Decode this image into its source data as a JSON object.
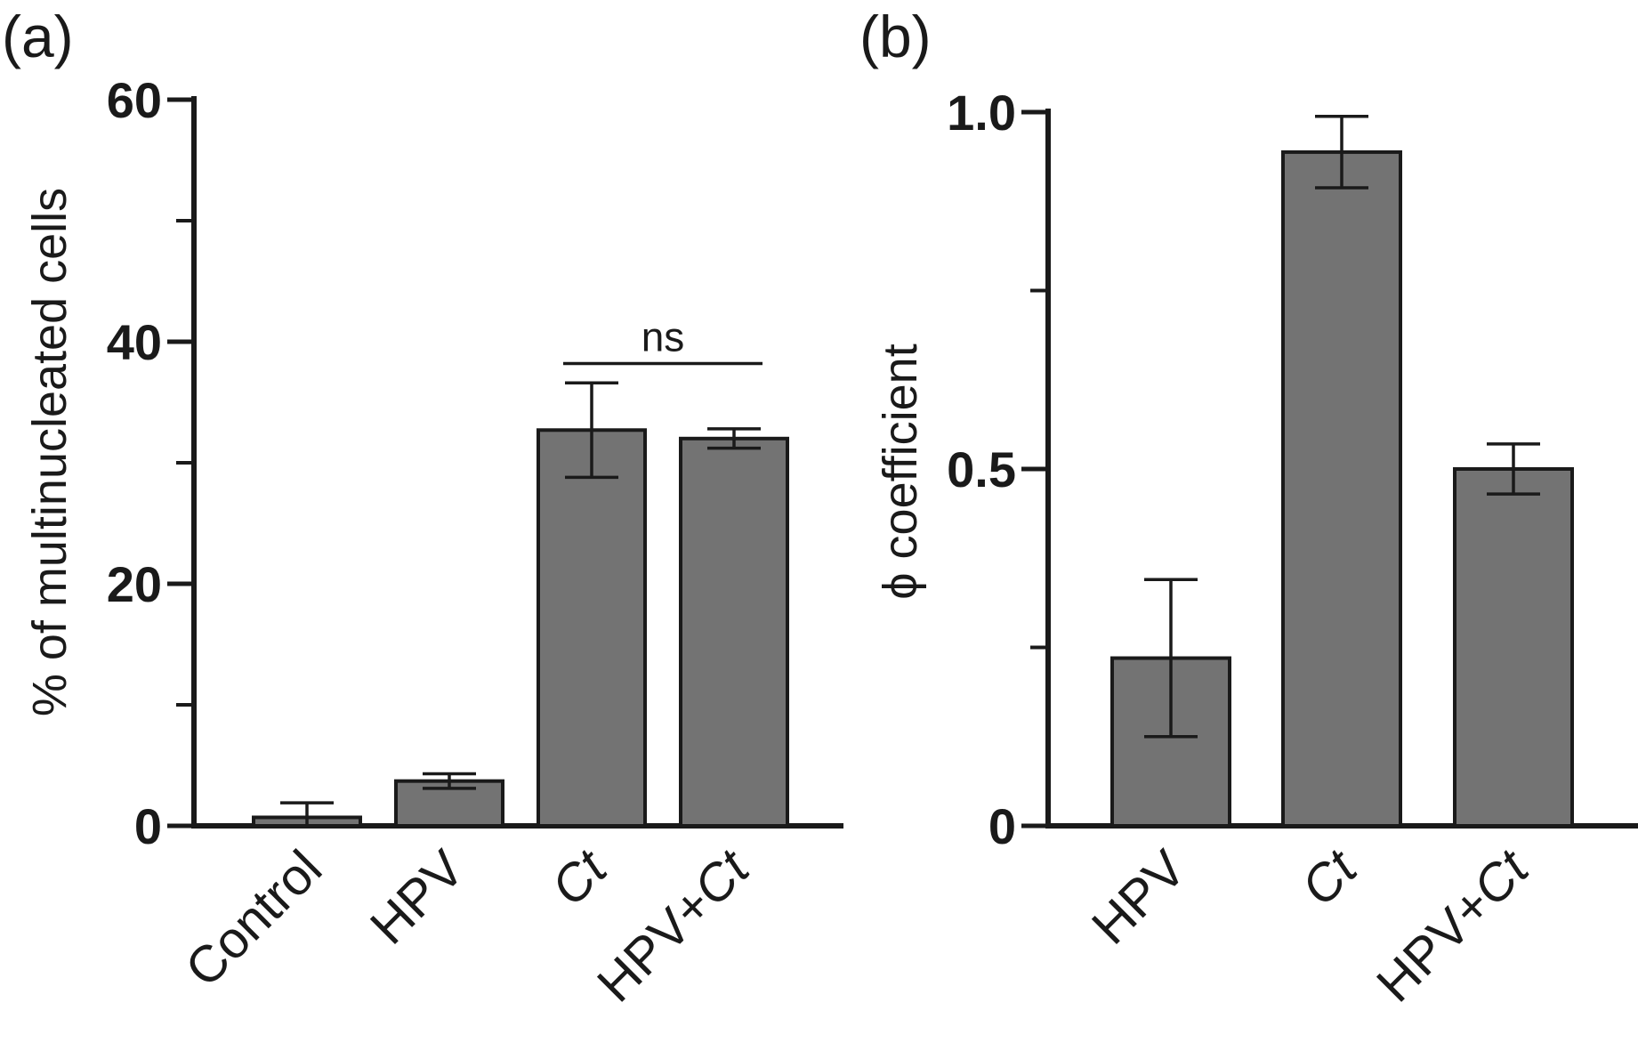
{
  "chart_data": [
    {
      "panel": "(a)",
      "type": "bar",
      "categories": [
        "Control",
        "HPV",
        "Ct",
        "HPV+Ct"
      ],
      "values": [
        0.7,
        3.7,
        32.7,
        32.0
      ],
      "error": [
        1.2,
        0.6,
        3.9,
        0.8
      ],
      "ylabel": "% of multinucleated cells",
      "ylim": [
        0,
        60
      ],
      "yticks": [
        0,
        20,
        40,
        60
      ],
      "yticks_minor": [
        10,
        30,
        50
      ],
      "bar_color": "#737373",
      "annotation": {
        "text": "ns",
        "from": "Ct",
        "to": "HPV+Ct",
        "y": 38.2
      }
    },
    {
      "panel": "(b)",
      "type": "bar",
      "categories": [
        "HPV",
        "Ct",
        "HPV+Ct"
      ],
      "values": [
        0.235,
        0.944,
        0.5
      ],
      "error": [
        0.11,
        0.05,
        0.035
      ],
      "ylabel": "ϕ coefficient",
      "ylim": [
        0,
        1.0
      ],
      "yticks": [
        "0",
        "0.5",
        "1.0"
      ],
      "yticks_minor": [
        0.25,
        0.75
      ],
      "bar_color": "#737373"
    }
  ]
}
